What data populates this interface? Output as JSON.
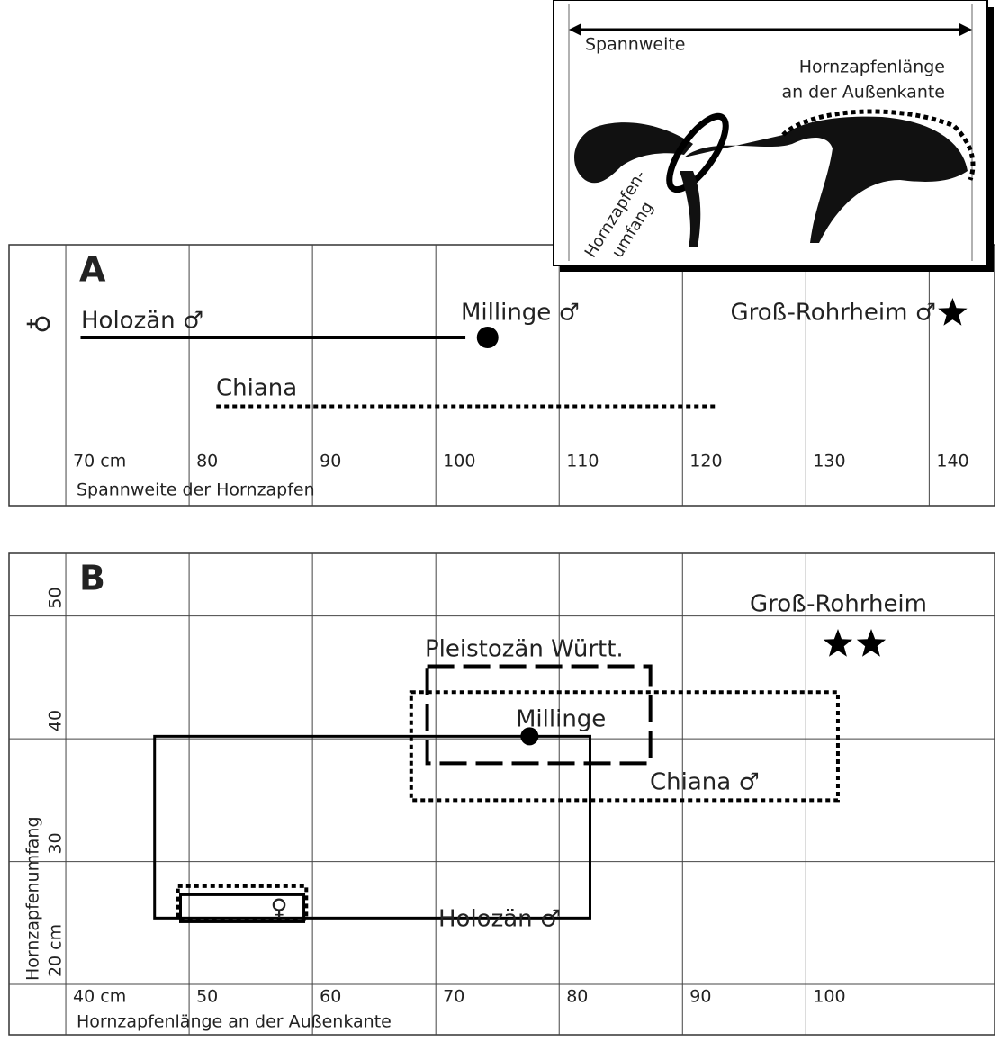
{
  "inset": {
    "span_label": "Spannweite",
    "length_label": [
      "Hornzapfenlänge",
      "an der Außenkante"
    ],
    "circumference_label": [
      "Hornzapfen-",
      "umfang"
    ]
  },
  "chart_data": [
    {
      "type": "range",
      "panel": "A",
      "y_label": "♀",
      "x_label": "Spannweite der Hornzapfen",
      "xlim": [
        65.4,
        145.3
      ],
      "xticks": [
        {
          "value": 70,
          "label": "70 cm"
        },
        80,
        90,
        100,
        110,
        120,
        130,
        140
      ],
      "grid": true,
      "series": [
        {
          "name": "Holozän ♂",
          "style": "solid",
          "values": [
            71.2,
            102.4
          ]
        },
        {
          "name": "Millinge ♂",
          "marker": "circle",
          "values": [
            104.2
          ]
        },
        {
          "name": "Chiana",
          "style": "dotted",
          "values": [
            82.2,
            122.8
          ]
        },
        {
          "name": "Groß-Rohrheim ♂",
          "marker": "star",
          "values": [
            141.9
          ]
        }
      ]
    },
    {
      "type": "boxes",
      "panel": "B",
      "x_label": "Hornzapfenlänge an der Außenkante",
      "y_label": "Hornzapfenumfang",
      "xlim": [
        35.4,
        115.3
      ],
      "xticks": [
        {
          "value": 40,
          "label": "40 cm"
        },
        50,
        60,
        70,
        80,
        90,
        100
      ],
      "ylim": [
        15.9,
        55.1
      ],
      "yticks": [
        {
          "value": 20,
          "label": "20 cm"
        },
        30,
        40,
        50
      ],
      "grid": true,
      "series": [
        {
          "name": "Holozän ♂",
          "style": "solid",
          "x": [
            47.2,
            82.5
          ],
          "values": [
            25.4,
            40.2
          ]
        },
        {
          "name": "Pleistozän Württ.",
          "style": "dashed",
          "x": [
            69.3,
            87.4
          ],
          "values": [
            38.0,
            45.9
          ]
        },
        {
          "name": "Chiana ♂",
          "style": "dotted",
          "x": [
            68.0,
            102.6
          ],
          "values": [
            35.0,
            43.8
          ]
        },
        {
          "name": "♀",
          "style": "solid",
          "x": [
            49.3,
            59.3
          ],
          "values": [
            25.1,
            27.3
          ]
        },
        {
          "style": "dotted",
          "x": [
            49.1,
            59.5
          ],
          "values": [
            25.3,
            28.0
          ]
        },
        {
          "name": "Millinge",
          "marker": "circle",
          "x": [
            77.6
          ],
          "values": [
            40.2
          ]
        },
        {
          "name": "Groß-Rohrheim",
          "marker": "star",
          "x": [
            102.6,
            105.3
          ],
          "values": [
            47.7,
            47.7
          ]
        }
      ]
    }
  ]
}
